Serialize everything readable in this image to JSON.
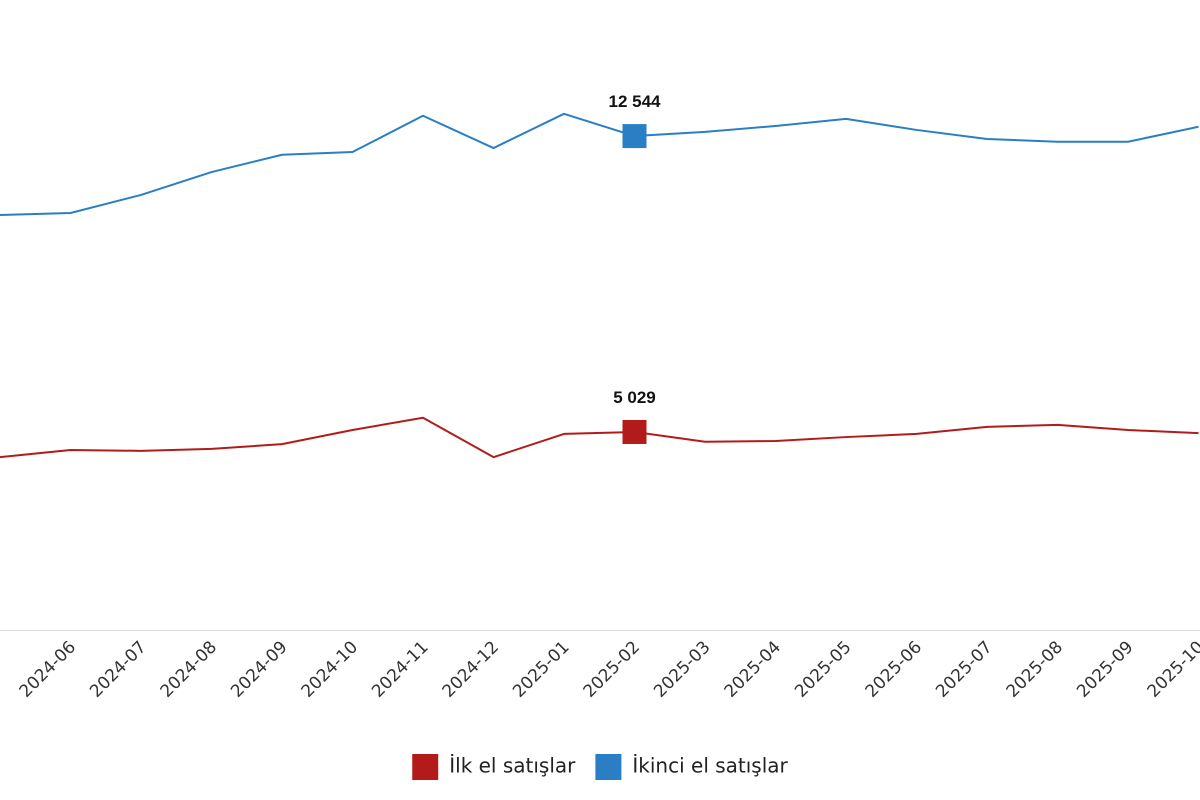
{
  "chart_data": {
    "type": "line",
    "categories": [
      null,
      "2024-06",
      "2024-07",
      "2024-08",
      "2024-09",
      "2024-10",
      "2024-11",
      "2024-12",
      "2025-01",
      "2025-02",
      "2025-03",
      "2025-04",
      "2025-05",
      "2025-06",
      "2025-07",
      "2025-08",
      "2025-09",
      "2025-10"
    ],
    "series": [
      {
        "name": "İlk el satışlar",
        "color": "#b31b1b",
        "values": [
          4390,
          4570,
          4550,
          4600,
          4720,
          5080,
          5390,
          4390,
          4980,
          5029,
          4780,
          4800,
          4900,
          4980,
          5160,
          5210,
          5080,
          5000
        ],
        "value_labels": [
          null,
          null,
          null,
          null,
          null,
          null,
          null,
          null,
          null,
          "5 029",
          null,
          null,
          null,
          null,
          null,
          null,
          null,
          null
        ]
      },
      {
        "name": "İkinci el satışlar",
        "color": "#2a7fc4",
        "values": [
          10540,
          10590,
          11050,
          11630,
          12070,
          12140,
          13060,
          12240,
          13110,
          12544,
          12650,
          12800,
          12980,
          12700,
          12470,
          12400,
          12400,
          12780
        ],
        "value_labels": [
          null,
          null,
          null,
          null,
          null,
          null,
          null,
          null,
          null,
          "12 544",
          null,
          null,
          null,
          null,
          null,
          null,
          null,
          null
        ]
      }
    ],
    "ylim": [
      0,
      16000
    ],
    "legend": "bottom"
  }
}
